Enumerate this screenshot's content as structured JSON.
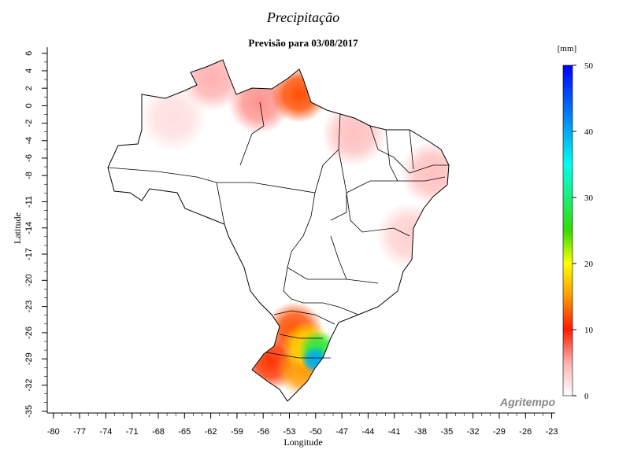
{
  "chart_data": {
    "type": "map",
    "title": "Precipitação",
    "subtitle": "Previsão para 03/08/2017",
    "xlabel": "Longitude",
    "ylabel": "Latitude",
    "xlim": [
      -80.7,
      -22.6
    ],
    "ylim": [
      -35.2,
      6.7
    ],
    "xticks": [
      -80,
      -77,
      -74,
      -71,
      -68,
      -65,
      -62,
      -59,
      -56,
      -53,
      -50,
      -47,
      -44,
      -41,
      -38,
      -35,
      -32,
      -29,
      -26,
      -23
    ],
    "yticks": [
      6,
      4,
      2,
      0,
      -2,
      -4,
      -6,
      -8,
      -11,
      -14,
      -17,
      -20,
      -23,
      -26,
      -29,
      -32,
      -35
    ],
    "colorbar": {
      "label": "[mm]",
      "lim": [
        0,
        50
      ],
      "ticks": [
        0,
        10,
        20,
        30,
        40,
        50
      ],
      "stops": [
        {
          "value": 0,
          "color": "#ffffff"
        },
        {
          "value": 5,
          "color": "#ffb0b0"
        },
        {
          "value": 10,
          "color": "#ff1a00"
        },
        {
          "value": 15,
          "color": "#ff9900"
        },
        {
          "value": 20,
          "color": "#ffff00"
        },
        {
          "value": 25,
          "color": "#33dd00"
        },
        {
          "value": 35,
          "color": "#00ffee"
        },
        {
          "value": 50,
          "color": "#0000ff"
        }
      ]
    },
    "hotspots": [
      {
        "lon": -66.3,
        "lat": -1.4,
        "value": 2
      },
      {
        "lon": -39.3,
        "lat": -14.9,
        "value": 3
      },
      {
        "lon": -45.6,
        "lat": -3.2,
        "value": 4
      },
      {
        "lon": -36.6,
        "lat": -7.7,
        "value": 4
      },
      {
        "lon": -61.8,
        "lat": 3.1,
        "value": 5
      },
      {
        "lon": -56.4,
        "lat": 0.4,
        "value": 6
      },
      {
        "lon": -55.1,
        "lat": -29.3,
        "value": 11
      },
      {
        "lon": -52.4,
        "lat": -25.7,
        "value": 12
      },
      {
        "lon": -51.9,
        "lat": 1.3,
        "value": 12
      },
      {
        "lon": -51.5,
        "lat": -30.2,
        "value": 15
      },
      {
        "lon": -51.0,
        "lat": -27.5,
        "value": 18
      },
      {
        "lon": -49.7,
        "lat": -28.0,
        "value": 28
      },
      {
        "lon": -50.1,
        "lat": -29.1,
        "value": 40
      }
    ],
    "watermark": "Agritempo"
  }
}
